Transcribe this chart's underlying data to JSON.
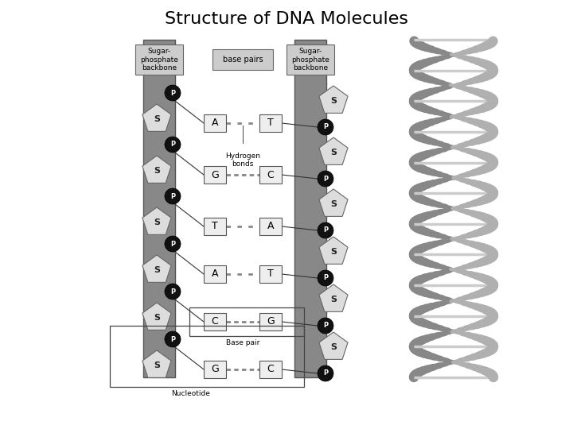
{
  "title": "Structure of DNA Molecules",
  "title_fontsize": 16,
  "bg_color": "#ffffff",
  "backbone_fill": "#888888",
  "backbone_edge": "#555555",
  "p_fill": "#111111",
  "p_text": "#ffffff",
  "s_fill": "#dddddd",
  "s_edge": "#666666",
  "base_fill": "#eeeeee",
  "base_edge": "#555555",
  "header_fill": "#cccccc",
  "header_edge": "#666666",
  "conn_color": "#333333",
  "bond_color": "#777777",
  "annot_edge": "#444444",
  "helix_strand": "#aaaaaa",
  "helix_dark": "#777777",
  "helix_rung": "#cccccc",
  "base_pairs": [
    {
      "left": "A",
      "right": "T",
      "ndots": 2
    },
    {
      "left": "G",
      "right": "C",
      "ndots": 4
    },
    {
      "left": "T",
      "right": "A",
      "ndots": 2
    },
    {
      "left": "A",
      "right": "T",
      "ndots": 2
    },
    {
      "left": "C",
      "right": "G",
      "ndots": 4
    },
    {
      "left": "G",
      "right": "C",
      "ndots": 4
    }
  ],
  "left_header": "Sugar-\nphosphate\nbackbone",
  "right_header": "Sugar-\nphosphate\nbackbone",
  "center_header": "base pairs",
  "hydrogen_label": "Hydrogen\nbonds",
  "base_pair_label": "Base pair",
  "nucleotide_label": "Nucleotide"
}
